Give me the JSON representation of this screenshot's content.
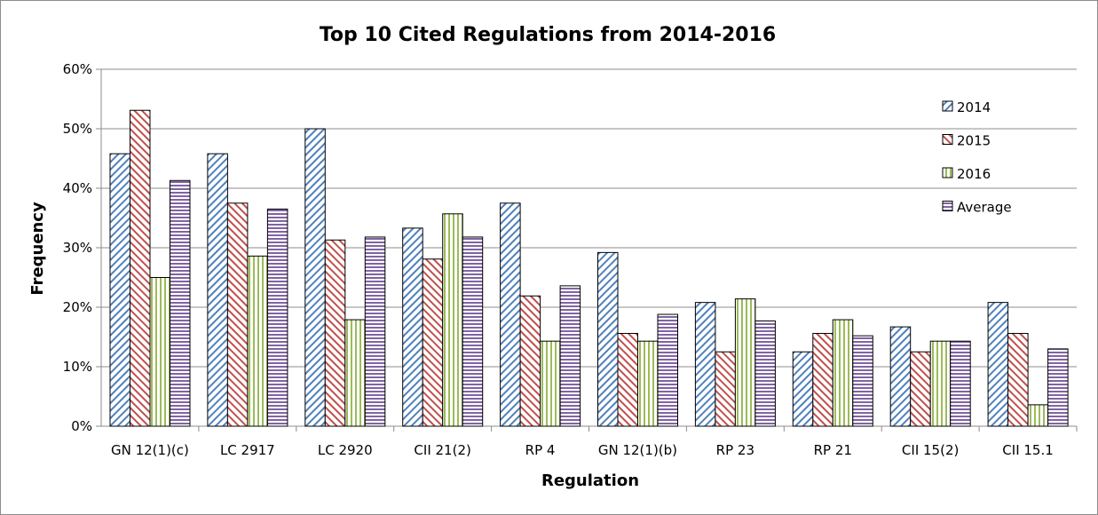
{
  "chart_data": {
    "type": "bar",
    "title": "Top 10 Cited Regulations from 2014-2016",
    "xlabel": "Regulation",
    "ylabel": "Frequency",
    "ylim": [
      0,
      0.6
    ],
    "yticks": [
      "0%",
      "10%",
      "20%",
      "30%",
      "40%",
      "50%",
      "60%"
    ],
    "grid": true,
    "legend_position": "right",
    "categories": [
      "GN 12(1)(c)",
      "LC 2917",
      "LC 2920",
      "CII 21(2)",
      "RP 4",
      "GN 12(1)(b)",
      "RP 23",
      "RP 21",
      "CII 15(2)",
      "CII 15.1"
    ],
    "series": [
      {
        "name": "2014",
        "pattern": "diagonal",
        "color": "#4f81bd",
        "values": [
          0.458,
          0.458,
          0.5,
          0.333,
          0.375,
          0.292,
          0.208,
          0.125,
          0.167,
          0.208
        ]
      },
      {
        "name": "2015",
        "pattern": "diagonal",
        "color": "#c0504d",
        "values": [
          0.531,
          0.375,
          0.313,
          0.281,
          0.219,
          0.156,
          0.125,
          0.156,
          0.125,
          0.156
        ]
      },
      {
        "name": "2016",
        "pattern": "vertical",
        "color": "#9bbb59",
        "values": [
          0.25,
          0.286,
          0.179,
          0.357,
          0.143,
          0.143,
          0.214,
          0.179,
          0.143,
          0.036
        ]
      },
      {
        "name": "Average",
        "pattern": "horizontal",
        "color": "#8064a2",
        "values": [
          0.413,
          0.365,
          0.318,
          0.318,
          0.236,
          0.188,
          0.177,
          0.152,
          0.143,
          0.13
        ]
      }
    ]
  }
}
